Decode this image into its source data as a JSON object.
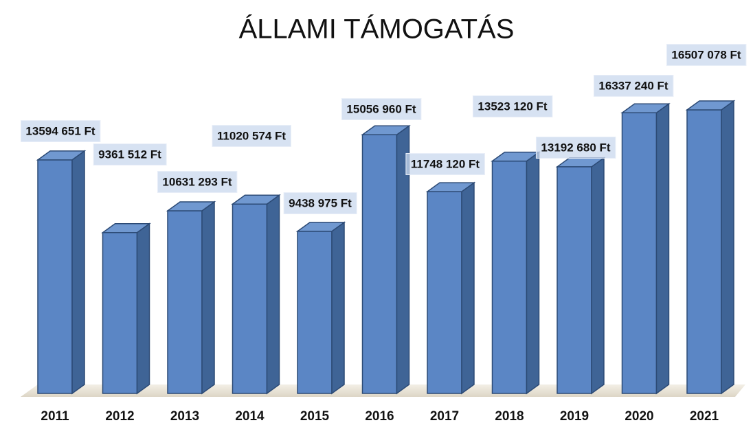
{
  "chart_data": {
    "type": "bar3d",
    "title": "ÁLLAMI TÁMOGATÁS",
    "categories": [
      "2011",
      "2012",
      "2013",
      "2014",
      "2015",
      "2016",
      "2017",
      "2018",
      "2019",
      "2020",
      "2021"
    ],
    "values": [
      13594651,
      9361512,
      10631293,
      11020574,
      9438975,
      15056960,
      11748120,
      13523120,
      13192680,
      16337240,
      16507078
    ],
    "value_labels": [
      "13594 651 Ft",
      "9361 512 Ft",
      "10631 293 Ft",
      "11020 574 Ft",
      "9438 975 Ft",
      "15056 960 Ft",
      "11748 120 Ft",
      "13523 120 Ft",
      "13192 680 Ft",
      "16337 240 Ft",
      "16507 078 Ft"
    ],
    "color": "#5b86c5"
  }
}
